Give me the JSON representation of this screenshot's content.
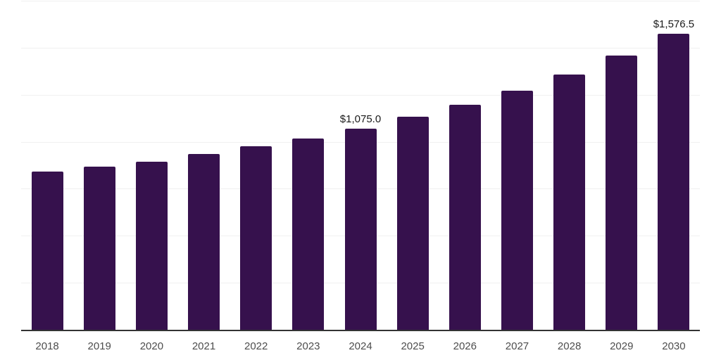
{
  "page": {
    "background_color": "#ffffff"
  },
  "chart_data": {
    "type": "bar",
    "title": "",
    "subtitle": "",
    "xlabel": "",
    "ylabel": "",
    "categories": [
      "2018",
      "2019",
      "2020",
      "2021",
      "2022",
      "2023",
      "2024",
      "2025",
      "2026",
      "2027",
      "2028",
      "2029",
      "2030"
    ],
    "values": [
      845,
      871,
      897,
      938,
      980,
      1021,
      1075,
      1136,
      1200,
      1274,
      1360,
      1461,
      1576.5
    ],
    "data_labels": [
      "",
      "",
      "",
      "",
      "",
      "",
      "$1,075.0",
      "",
      "",
      "",
      "",
      "",
      "$1,576.5"
    ],
    "ylim": [
      0,
      1750
    ],
    "grid_step": 250,
    "grid": "horizontal-only",
    "legend_position": "none",
    "y_axis_labels_visible": false,
    "colors": {
      "bar": "#36114D",
      "gridline": "#f0f0f0",
      "axis_line": "#333333",
      "tick_label": "#4d4d4d",
      "data_label": "#1a1a1a"
    }
  }
}
